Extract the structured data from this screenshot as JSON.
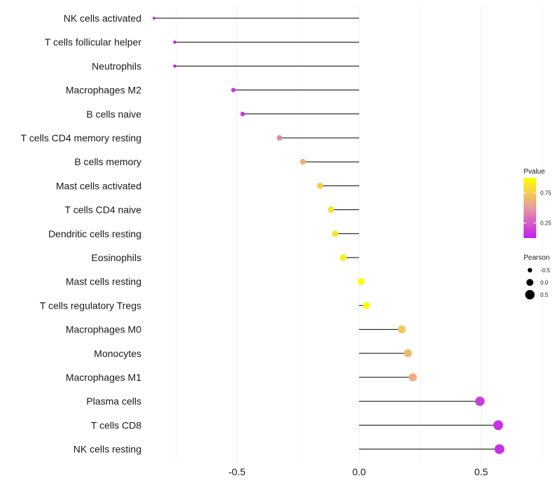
{
  "chart_data": {
    "type": "lollipop",
    "title": "",
    "xlabel": "",
    "ylabel": "",
    "xlim": [
      -0.84,
      0.8
    ],
    "x_ticks": [
      -0.5,
      0.0,
      0.5
    ],
    "x_tick_labels": [
      "-0.5",
      "0.0",
      "0.5"
    ],
    "grid": true,
    "categories": [
      "NK cells activated",
      "T cells follicular helper",
      "Neutrophils",
      "Macrophages M2",
      "B cells naive",
      "T cells CD4 memory resting",
      "B cells memory",
      "Mast cells activated",
      "T cells CD4 naive",
      "Dendritic cells resting",
      "Eosinophils",
      "Mast cells resting",
      "T cells regulatory  Tregs ",
      "Macrophages M0",
      "Monocytes",
      "Macrophages M1",
      "Plasma cells",
      "T cells CD8",
      "NK cells resting"
    ],
    "pearson": [
      -0.84,
      -0.755,
      -0.755,
      -0.515,
      -0.477,
      -0.326,
      -0.23,
      -0.16,
      -0.115,
      -0.098,
      -0.065,
      0.008,
      0.03,
      0.175,
      0.2,
      0.22,
      0.495,
      0.57,
      0.575
    ],
    "pvalue": [
      0.001,
      0.005,
      0.005,
      0.09,
      0.12,
      0.42,
      0.62,
      0.76,
      0.85,
      0.87,
      0.92,
      0.99,
      0.97,
      0.72,
      0.66,
      0.6,
      0.12,
      0.07,
      0.06
    ],
    "color_legend": {
      "title": "Pvalue",
      "ticks": [
        0.25,
        0.75
      ],
      "tick_labels": [
        "0.25",
        "0.75"
      ],
      "range": [
        0,
        1
      ],
      "low_color": "#c020f0",
      "high_color": "#ffff00"
    },
    "size_legend": {
      "title": "Pearson",
      "values": [
        -0.5,
        0.0,
        0.5
      ],
      "labels": [
        "-0.5",
        "0.0",
        "0.5"
      ]
    },
    "colors": {
      "grid": "#ebebeb",
      "segment": "#000000",
      "text": "#1a1a1a"
    }
  }
}
